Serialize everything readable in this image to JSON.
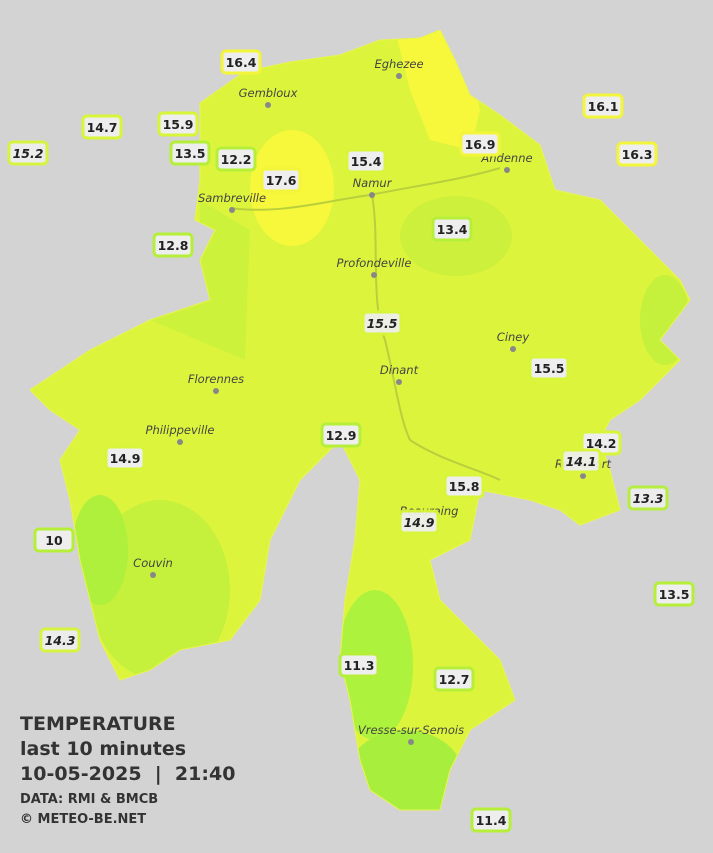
{
  "legend": {
    "title": "TEMPERATURE",
    "period": "last 10 minutes",
    "datetime": "10-05-2025  |  21:40",
    "source": "DATA: RMI & BMCB",
    "copyright": "© METEO-BE.NET"
  },
  "towns": [
    "Eghezee",
    "Gembloux",
    "Andenne",
    "Namur",
    "Sambreville",
    "Profondeville",
    "Ciney",
    "Dinant",
    "Florennes",
    "Philippeville",
    "Rochefort",
    "Beauraing",
    "Couvin",
    "Vresse-sur-Semois"
  ],
  "stations": [
    16.4,
    14.7,
    15.9,
    15.2,
    13.5,
    12.2,
    17.6,
    15.4,
    16.9,
    16.1,
    16.3,
    12.8,
    13.4,
    15.5,
    15.5,
    12.9,
    14.9,
    14.2,
    14.1,
    13.3,
    15.8,
    14.9,
    10.0,
    13.5,
    14.3,
    11.3,
    12.7,
    11.4
  ]
}
